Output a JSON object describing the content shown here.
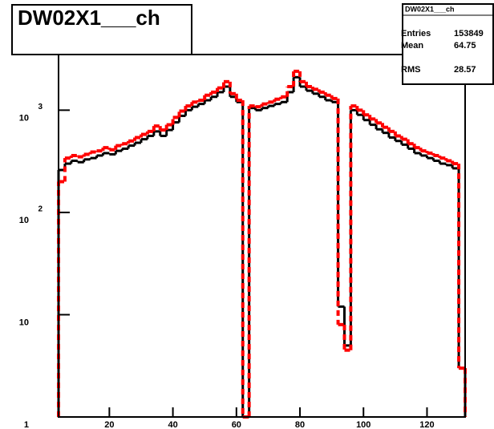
{
  "chart_data": {
    "type": "histogram",
    "title": "DW02X1___ch",
    "log_y": true,
    "bins": [
      4,
      6,
      8,
      10,
      12,
      14,
      16,
      18,
      20,
      22,
      24,
      26,
      28,
      30,
      32,
      34,
      36,
      38,
      40,
      42,
      44,
      46,
      48,
      50,
      52,
      54,
      56,
      58,
      60,
      62,
      64,
      66,
      68,
      70,
      72,
      74,
      76,
      78,
      80,
      82,
      84,
      86,
      88,
      90,
      92,
      94,
      96,
      98,
      100,
      102,
      104,
      106,
      108,
      110,
      112,
      114,
      116,
      118,
      120,
      122,
      124,
      126,
      128,
      130,
      132
    ],
    "series": [
      {
        "color": "#000000",
        "line_style": "solid",
        "values": [
          260,
          300,
          320,
          310,
          330,
          340,
          360,
          380,
          370,
          400,
          420,
          450,
          480,
          520,
          560,
          620,
          560,
          640,
          760,
          880,
          1000,
          1080,
          1150,
          1250,
          1350,
          1500,
          1700,
          1350,
          1200,
          1,
          1050,
          1000,
          1050,
          1100,
          1150,
          1200,
          1500,
          2100,
          1700,
          1550,
          1450,
          1350,
          1250,
          1200,
          12,
          5,
          1000,
          900,
          800,
          720,
          650,
          600,
          540,
          500,
          460,
          420,
          380,
          360,
          340,
          320,
          300,
          290,
          270,
          3
        ]
      },
      {
        "color": "#ff0000",
        "line_style": "dashed",
        "values": [
          200,
          340,
          360,
          350,
          370,
          390,
          400,
          430,
          410,
          450,
          470,
          500,
          540,
          580,
          620,
          700,
          640,
          720,
          850,
          980,
          1100,
          1200,
          1250,
          1400,
          1500,
          1650,
          1900,
          1450,
          1250,
          1,
          1100,
          1080,
          1150,
          1200,
          1280,
          1350,
          1700,
          2400,
          1900,
          1700,
          1600,
          1500,
          1400,
          1300,
          8,
          4.5,
          1100,
          1000,
          900,
          820,
          750,
          680,
          620,
          560,
          520,
          470,
          430,
          400,
          380,
          360,
          340,
          320,
          300,
          3
        ]
      }
    ],
    "xlim": [
      4,
      132
    ],
    "xticks": [
      20,
      40,
      60,
      80,
      100,
      120
    ],
    "ylim": [
      1,
      3500
    ],
    "yticks": [
      1,
      10,
      {
        "value": 100,
        "label": "10",
        "exponent": "2"
      },
      {
        "value": 1000,
        "label": "10",
        "exponent": "3"
      }
    ],
    "stats": {
      "name": "DW02X1___ch",
      "rows": [
        {
          "label": "Entries",
          "value": 153849
        },
        {
          "label": "Mean",
          "value": 64.75
        },
        {
          "label": "RMS",
          "value": 28.57
        }
      ]
    }
  }
}
